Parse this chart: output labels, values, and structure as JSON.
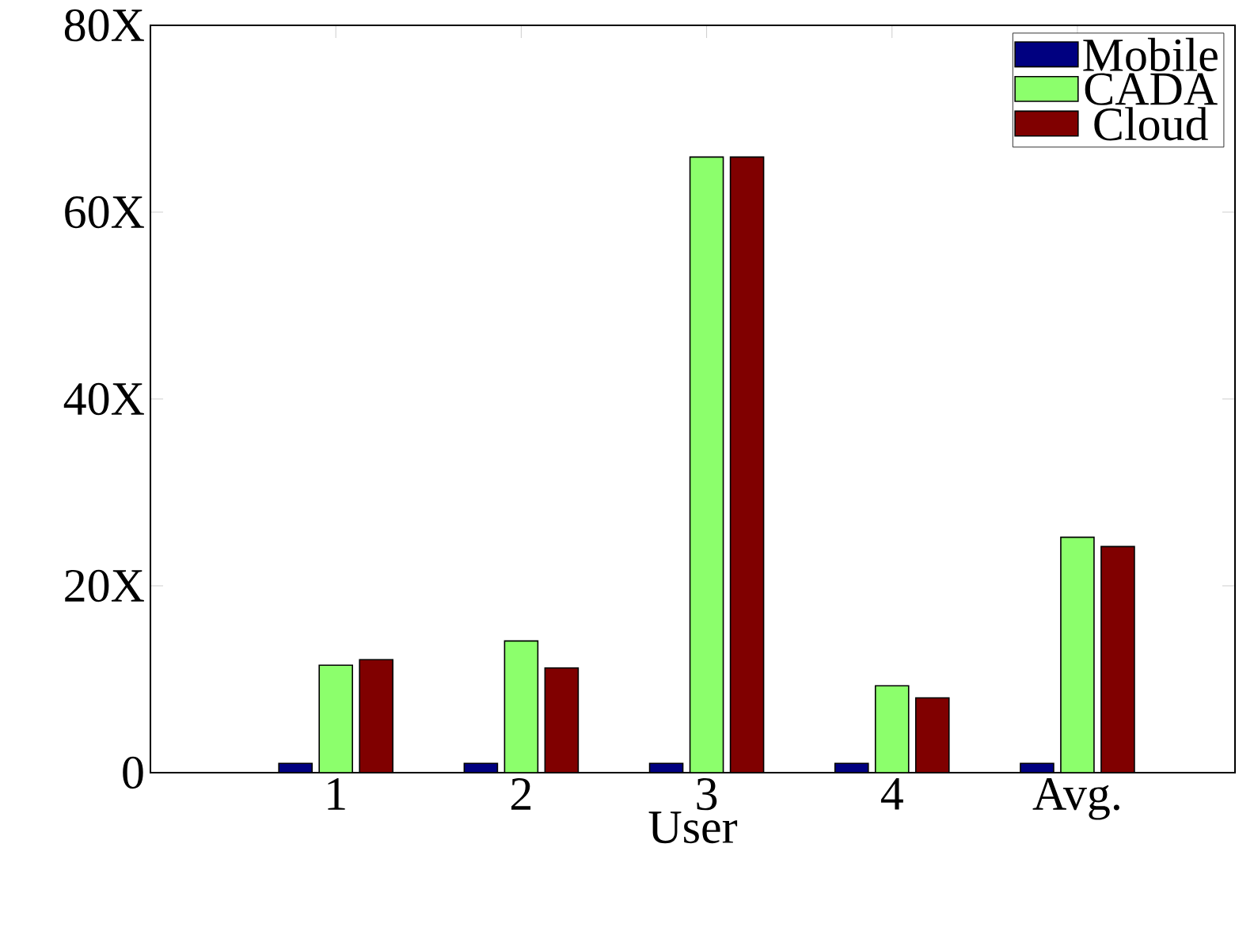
{
  "chart_data": {
    "type": "bar",
    "xlabel": "User",
    "categories": [
      "1",
      "2",
      "3",
      "4",
      "Avg."
    ],
    "series": [
      {
        "name": "Mobile",
        "color": "#000080",
        "values": [
          1.0,
          1.0,
          1.0,
          1.0,
          1.0
        ]
      },
      {
        "name": "CADA",
        "color": "#8cff6c",
        "values": [
          11.5,
          14.1,
          65.9,
          9.3,
          25.2
        ]
      },
      {
        "name": "Cloud",
        "color": "#800000",
        "values": [
          12.1,
          11.2,
          65.9,
          8.0,
          24.2
        ]
      }
    ],
    "ylim": [
      0,
      80
    ],
    "yticks": [
      0,
      {
        "value": 20,
        "label": "20X"
      },
      {
        "value": 40,
        "label": "40X"
      },
      {
        "value": 60,
        "label": "60X"
      },
      {
        "value": 80,
        "label": "80X"
      }
    ],
    "legend": "top right",
    "grid": false
  }
}
